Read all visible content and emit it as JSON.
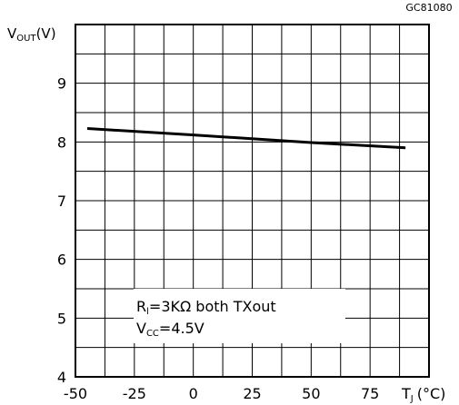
{
  "chart_data": {
    "type": "line",
    "figure_code": "GC81080",
    "ylabel": {
      "main": "V",
      "sub": "OUT",
      "unit": "(V)"
    },
    "xlabel": {
      "main": "T",
      "sub": "J",
      "unit": "(°C)"
    },
    "xlim": [
      -50,
      100
    ],
    "ylim": [
      4,
      10
    ],
    "x_ticks": [
      "-50",
      "-25",
      "0",
      "25",
      "50",
      "75"
    ],
    "x_tick_values": [
      -50,
      -25,
      0,
      25,
      50,
      75
    ],
    "y_ticks": [
      "4",
      "5",
      "6",
      "7",
      "8",
      "9"
    ],
    "y_tick_values": [
      4,
      5,
      6,
      7,
      8,
      9
    ],
    "grid": {
      "x_step": 12.5,
      "y_step": 0.5
    },
    "series": [
      {
        "x": [
          -45,
          0,
          50,
          90
        ],
        "y": [
          8.23,
          8.12,
          7.99,
          7.9
        ]
      }
    ],
    "annotation": {
      "line1_main": "R",
      "line1_sub": "l",
      "line1_rest": "=3KΩ  both  TXout",
      "line2_main": "V",
      "line2_sub": "CC",
      "line2_rest": "=4.5V"
    }
  }
}
